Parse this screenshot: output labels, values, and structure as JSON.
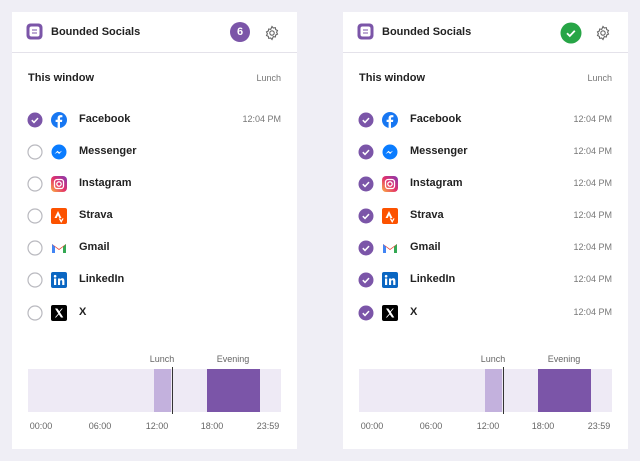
{
  "panels": [
    {
      "title": "Bounded Socials",
      "badge": "6",
      "complete": false,
      "section_title": "This window",
      "section_tag": "Lunch",
      "apps": [
        {
          "name": "Facebook",
          "time": "12:04 PM",
          "checked": true
        },
        {
          "name": "Messenger",
          "checked": false
        },
        {
          "name": "Instagram",
          "checked": false
        },
        {
          "name": "Strava",
          "checked": false
        },
        {
          "name": "Gmail",
          "checked": false
        },
        {
          "name": "LinkedIn",
          "checked": false
        },
        {
          "name": "X",
          "checked": false
        }
      ],
      "timeline": {
        "windows": [
          "Lunch",
          "Evening"
        ],
        "ticks": [
          "00:00",
          "06:00",
          "12:00",
          "18:00",
          "23:59"
        ]
      }
    },
    {
      "title": "Bounded Socials",
      "complete": true,
      "section_title": "This window",
      "section_tag": "Lunch",
      "apps": [
        {
          "name": "Facebook",
          "time": "12:04 PM",
          "checked": true
        },
        {
          "name": "Messenger",
          "time": "12:04 PM",
          "checked": true
        },
        {
          "name": "Instagram",
          "time": "12:04 PM",
          "checked": true
        },
        {
          "name": "Strava",
          "time": "12:04 PM",
          "checked": true
        },
        {
          "name": "Gmail",
          "time": "12:04 PM",
          "checked": true
        },
        {
          "name": "LinkedIn",
          "time": "12:04 PM",
          "checked": true
        },
        {
          "name": "X",
          "time": "12:04 PM",
          "checked": true
        }
      ],
      "timeline": {
        "windows": [
          "Lunch",
          "Evening"
        ],
        "ticks": [
          "00:00",
          "06:00",
          "12:00",
          "18:00",
          "23:59"
        ]
      }
    }
  ]
}
